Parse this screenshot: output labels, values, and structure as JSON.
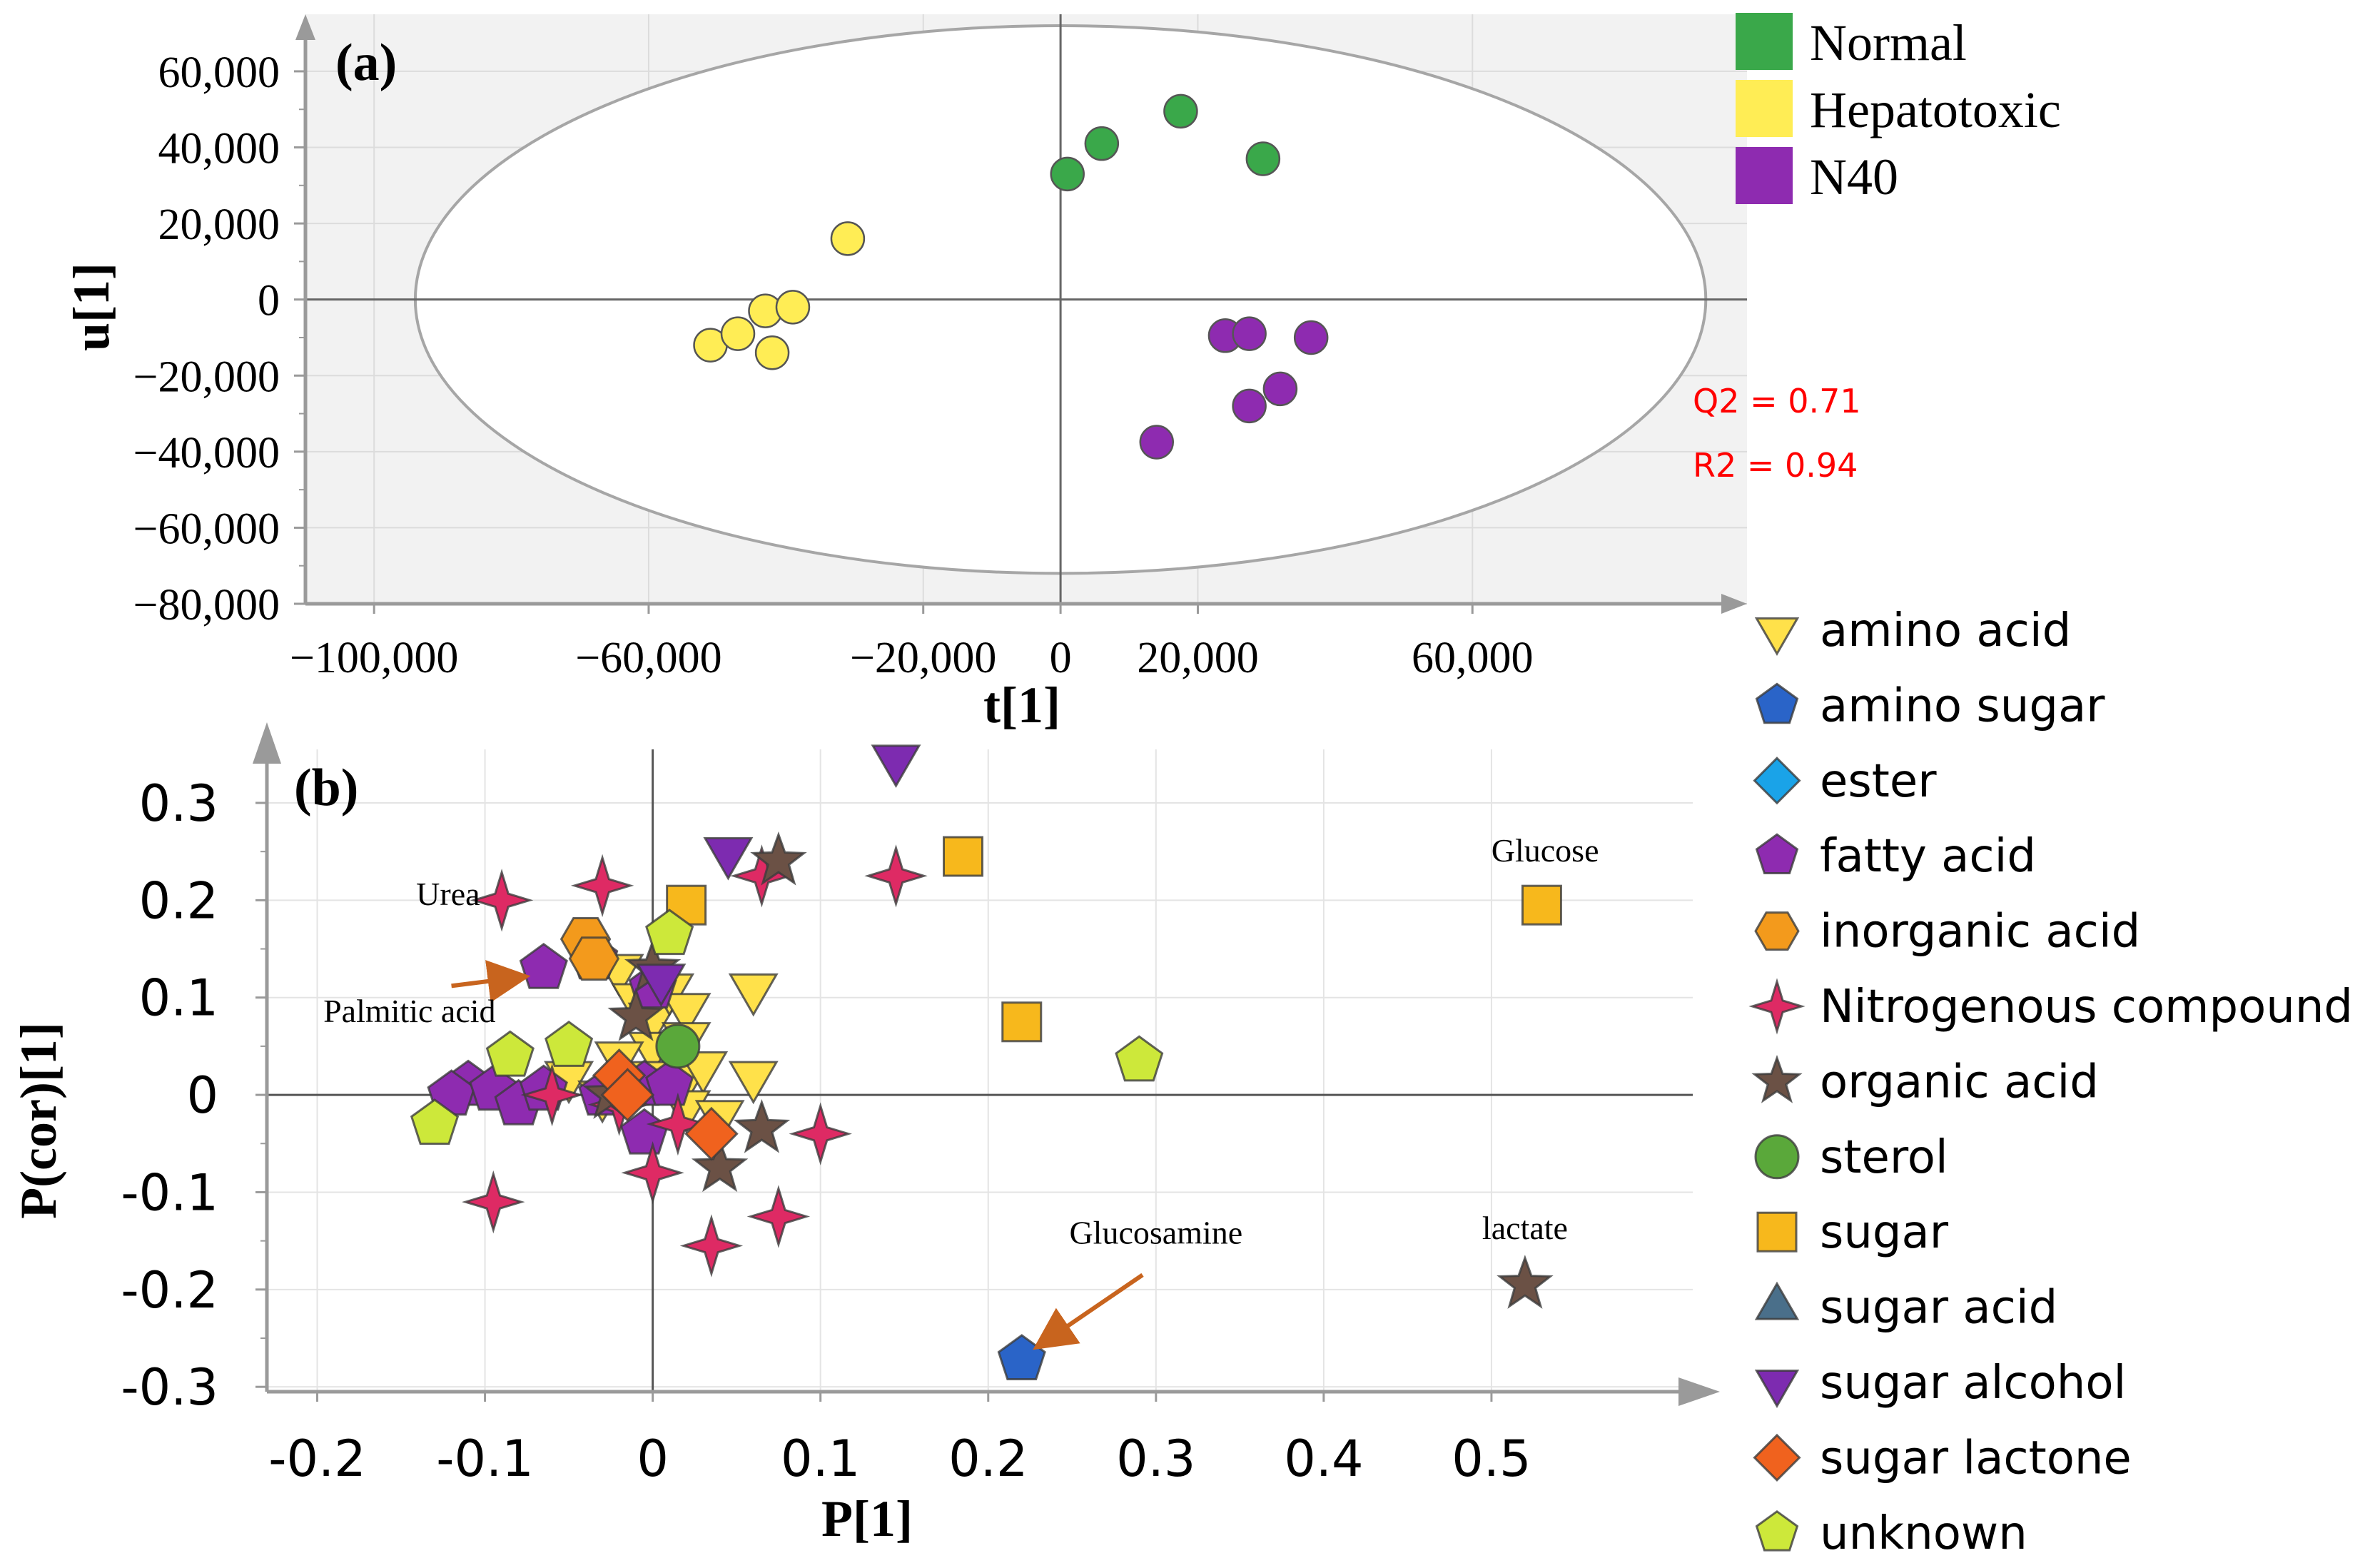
{
  "colors": {
    "normal": "#3aa84a",
    "hepatotoxic": "#ffed55",
    "n40": "#8e2bb0",
    "amino_acid": "#ffe14a",
    "amino_sugar": "#2a64c8",
    "ester": "#1aa3e8",
    "fatty_acid": "#8e2bb0",
    "inorganic_acid": "#f39a1c",
    "nitrogenous": "#de2a64",
    "organic_acid": "#6b5145",
    "sterol": "#5aa83a",
    "sugar": "#f7b81c",
    "sugar_acid": "#4a6f8a",
    "sugar_alcohol": "#7d2bb0",
    "sugar_lactone": "#f0621e",
    "unknown": "#cde83a",
    "annotation": "#ff0000",
    "arrow": "#c8641e"
  },
  "chart_data": [
    {
      "type": "scatter",
      "panel_label": "(a)",
      "xlabel": "t[1]",
      "ylabel": "u[1]",
      "xlim": [
        -110000,
        100000
      ],
      "ylim": [
        -80000,
        75000
      ],
      "x_ticks": [
        -100000,
        -60000,
        -20000,
        0,
        20000,
        60000
      ],
      "x_tick_labels": [
        "−100,000",
        "−60,000",
        "−20,000",
        "0",
        "20,000",
        "60,000"
      ],
      "y_ticks": [
        60000,
        40000,
        20000,
        0,
        -20000,
        -40000,
        -60000,
        -80000
      ],
      "y_tick_labels": [
        "60,000",
        "40,000",
        "20,000",
        "0",
        "−20,000",
        "−40,000",
        "−60,000",
        "−80,000"
      ],
      "ellipse": {
        "rx": 94000,
        "ry": 72000
      },
      "annotations": [
        "Q2 = 0.71",
        "R2 = 0.94"
      ],
      "legend": [
        {
          "label": "Normal",
          "color_key": "normal"
        },
        {
          "label": "Hepatotoxic",
          "color_key": "hepatotoxic"
        },
        {
          "label": "N40",
          "color_key": "n40"
        }
      ],
      "series": [
        {
          "name": "Normal",
          "color_key": "normal",
          "points": [
            [
              1000,
              33000
            ],
            [
              6000,
              41000
            ],
            [
              17500,
              49500
            ],
            [
              29500,
              37000
            ]
          ]
        },
        {
          "name": "Hepatotoxic",
          "color_key": "hepatotoxic",
          "points": [
            [
              -31000,
              16000
            ],
            [
              -51000,
              -12000
            ],
            [
              -47000,
              -9000
            ],
            [
              -43000,
              -3000
            ],
            [
              -39000,
              -2000
            ],
            [
              -42000,
              -14000
            ]
          ]
        },
        {
          "name": "N40",
          "color_key": "n40",
          "points": [
            [
              24000,
              -9500
            ],
            [
              27500,
              -9000
            ],
            [
              36500,
              -10000
            ],
            [
              27500,
              -28000
            ],
            [
              32000,
              -23500
            ],
            [
              14000,
              -37500
            ]
          ]
        }
      ]
    },
    {
      "type": "scatter",
      "panel_label": "(b)",
      "xlabel": "P[1]",
      "ylabel": "P(cor)[1]",
      "xlim": [
        -0.23,
        0.62
      ],
      "ylim": [
        -0.305,
        0.355
      ],
      "x_ticks": [
        -0.2,
        -0.1,
        0,
        0.1,
        0.2,
        0.3,
        0.4,
        0.5
      ],
      "x_tick_labels": [
        "-0.2",
        "-0.1",
        "0",
        "0.1",
        "0.2",
        "0.3",
        "0.4",
        "0.5"
      ],
      "y_ticks": [
        0.3,
        0.2,
        0.1,
        0,
        -0.1,
        -0.2,
        -0.3
      ],
      "y_tick_labels": [
        "0.3",
        "0.2",
        "0.1",
        "0",
        "-0.1",
        "-0.2",
        "-0.3"
      ],
      "point_labels": [
        {
          "text": "Glucose",
          "x": 0.532,
          "y": 0.24
        },
        {
          "text": "Urea",
          "x": -0.122,
          "y": 0.195
        },
        {
          "text": "Palmitic acid",
          "x": -0.145,
          "y": 0.075
        },
        {
          "text": "Glucosamine",
          "x": 0.3,
          "y": -0.153
        },
        {
          "text": "lactate",
          "x": 0.52,
          "y": -0.148
        }
      ],
      "arrows": [
        {
          "from": [
            -0.12,
            0.112
          ],
          "to": [
            -0.083,
            0.12
          ]
        },
        {
          "from": [
            0.292,
            -0.185
          ],
          "to": [
            0.235,
            -0.252
          ]
        }
      ],
      "legend": [
        {
          "label": "amino acid",
          "shape": "tri-down",
          "color_key": "amino_acid"
        },
        {
          "label": "amino sugar",
          "shape": "pentagon",
          "color_key": "amino_sugar"
        },
        {
          "label": "ester",
          "shape": "diamond",
          "color_key": "ester"
        },
        {
          "label": "fatty acid",
          "shape": "pentagon",
          "color_key": "fatty_acid"
        },
        {
          "label": "inorganic acid",
          "shape": "hexagon",
          "color_key": "inorganic_acid"
        },
        {
          "label": "Nitrogenous compound",
          "shape": "star4",
          "color_key": "nitrogenous"
        },
        {
          "label": "organic acid",
          "shape": "star5",
          "color_key": "organic_acid"
        },
        {
          "label": "sterol",
          "shape": "circle",
          "color_key": "sterol"
        },
        {
          "label": "sugar",
          "shape": "square",
          "color_key": "sugar"
        },
        {
          "label": "sugar acid",
          "shape": "tri-up",
          "color_key": "sugar_acid"
        },
        {
          "label": "sugar alcohol",
          "shape": "tri-down",
          "color_key": "sugar_alcohol"
        },
        {
          "label": "sugar lactone",
          "shape": "diamond",
          "color_key": "sugar_lactone"
        },
        {
          "label": "unknown",
          "shape": "pentagon",
          "color_key": "unknown"
        }
      ],
      "series": [
        {
          "name": "amino acid",
          "shape": "tri-down",
          "color_key": "amino_acid",
          "points": [
            [
              -0.02,
              0.13
            ],
            [
              -0.01,
              0.1
            ],
            [
              0.0,
              0.08
            ],
            [
              0.01,
              0.11
            ],
            [
              0.02,
              0.09
            ],
            [
              0.02,
              0.06
            ],
            [
              0.0,
              0.05
            ],
            [
              -0.02,
              0.04
            ],
            [
              -0.05,
              0.02
            ],
            [
              0.02,
              0.02
            ],
            [
              0.03,
              0.03
            ],
            [
              0.06,
              0.11
            ],
            [
              0.06,
              0.02
            ],
            [
              0.0,
              0.02
            ],
            [
              -0.03,
              0.0
            ],
            [
              0.02,
              -0.01
            ],
            [
              0.04,
              -0.02
            ]
          ]
        },
        {
          "name": "amino sugar",
          "shape": "pentagon",
          "color_key": "amino_sugar",
          "points": [
            [
              0.22,
              -0.272
            ]
          ]
        },
        {
          "name": "fatty acid",
          "shape": "pentagon",
          "color_key": "fatty_acid",
          "points": [
            [
              -0.065,
              0.13
            ],
            [
              -0.035,
              0.14
            ],
            [
              0.0,
              0.11
            ],
            [
              -0.11,
              0.01
            ],
            [
              -0.12,
              0.0
            ],
            [
              -0.095,
              0.005
            ],
            [
              -0.08,
              -0.01
            ],
            [
              -0.065,
              0.005
            ],
            [
              -0.03,
              0.0
            ],
            [
              -0.005,
              0.01
            ],
            [
              0.01,
              0.01
            ],
            [
              -0.005,
              -0.04
            ]
          ]
        },
        {
          "name": "inorganic acid",
          "shape": "hexagon",
          "color_key": "inorganic_acid",
          "points": [
            [
              -0.04,
              0.16
            ],
            [
              -0.035,
              0.14
            ]
          ]
        },
        {
          "name": "Nitrogenous compound",
          "shape": "star4",
          "color_key": "nitrogenous",
          "points": [
            [
              -0.09,
              0.2
            ],
            [
              -0.03,
              0.215
            ],
            [
              0.065,
              0.225
            ],
            [
              0.145,
              0.225
            ],
            [
              -0.06,
              0.0
            ],
            [
              -0.02,
              -0.01
            ],
            [
              0.015,
              -0.03
            ],
            [
              0.0,
              -0.08
            ],
            [
              0.1,
              -0.04
            ],
            [
              -0.095,
              -0.11
            ],
            [
              0.035,
              -0.155
            ],
            [
              0.075,
              -0.125
            ]
          ]
        },
        {
          "name": "organic acid",
          "shape": "star5",
          "color_key": "organic_acid",
          "points": [
            [
              0.075,
              0.24
            ],
            [
              0.0,
              0.13
            ],
            [
              -0.01,
              0.08
            ],
            [
              0.065,
              -0.035
            ],
            [
              0.04,
              -0.075
            ],
            [
              0.52,
              -0.195
            ],
            [
              -0.025,
              0.0
            ]
          ]
        },
        {
          "name": "sterol",
          "shape": "circle",
          "color_key": "sterol",
          "points": [
            [
              0.015,
              0.05
            ]
          ]
        },
        {
          "name": "sugar",
          "shape": "square",
          "color_key": "sugar",
          "points": [
            [
              0.02,
              0.195
            ],
            [
              0.185,
              0.245
            ],
            [
              0.22,
              0.075
            ],
            [
              0.53,
              0.195
            ]
          ]
        },
        {
          "name": "sugar alcohol",
          "shape": "tri-down",
          "color_key": "sugar_alcohol",
          "points": [
            [
              0.145,
              0.345
            ],
            [
              0.045,
              0.25
            ],
            [
              0.005,
              0.12
            ]
          ]
        },
        {
          "name": "sugar lactone",
          "shape": "diamond",
          "color_key": "sugar_lactone",
          "points": [
            [
              -0.02,
              0.02
            ],
            [
              -0.015,
              0.0
            ],
            [
              0.035,
              -0.04
            ]
          ]
        },
        {
          "name": "unknown",
          "shape": "pentagon",
          "color_key": "unknown",
          "points": [
            [
              0.01,
              0.165
            ],
            [
              -0.085,
              0.04
            ],
            [
              -0.05,
              0.05
            ],
            [
              -0.13,
              -0.03
            ],
            [
              0.29,
              0.035
            ]
          ]
        }
      ]
    }
  ]
}
